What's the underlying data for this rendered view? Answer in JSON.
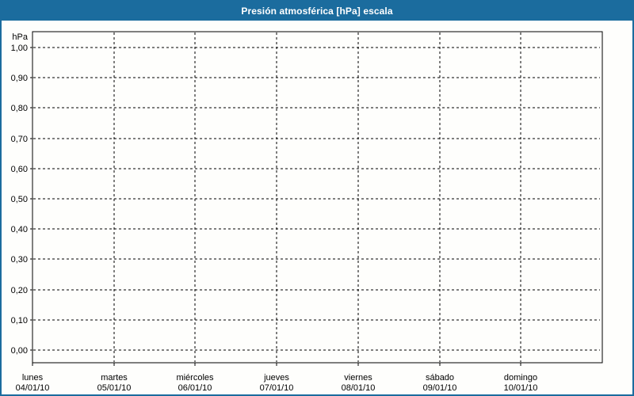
{
  "window": {
    "title": "Presión atmosférica [hPa] escala",
    "title_bar_color": "#1b6c9e",
    "border_color": "#1b6c9e",
    "content_background": "#fefefc"
  },
  "chart_data": {
    "type": "line",
    "title": "Presión atmosférica [hPa] escala",
    "ylabel": "hPa",
    "xlabel": "",
    "ylim": [
      0.0,
      1.0
    ],
    "ytick_step": 0.1,
    "yticks": [
      "1,00",
      "0,90",
      "0,80",
      "0,70",
      "0,60",
      "0,50",
      "0,40",
      "0,30",
      "0,20",
      "0,10",
      "0,00"
    ],
    "categories": [
      {
        "day": "lunes",
        "date": "04/01/10"
      },
      {
        "day": "martes",
        "date": "05/01/10"
      },
      {
        "day": "miércoles",
        "date": "06/01/10"
      },
      {
        "day": "jueves",
        "date": "07/01/10"
      },
      {
        "day": "viernes",
        "date": "08/01/10"
      },
      {
        "day": "sábado",
        "date": "09/01/10"
      },
      {
        "day": "domingo",
        "date": "10/01/10"
      }
    ],
    "series": [],
    "grid": true,
    "grid_style": "dashed",
    "grid_color": "#000000",
    "frame_color": "#000000",
    "legend_position": "none"
  }
}
